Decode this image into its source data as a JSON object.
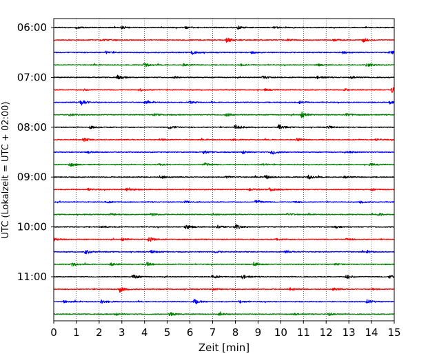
{
  "chart_data": {
    "type": "line",
    "title": "",
    "xlabel": "Zeit  [min]",
    "ylabel": "UTC (Lokalzeit = UTC + 02:00)",
    "xlim": [
      0,
      15
    ],
    "x_ticks": [
      "0",
      "1",
      "2",
      "3",
      "4",
      "5",
      "6",
      "7",
      "8",
      "9",
      "10",
      "11",
      "12",
      "13",
      "14",
      "15"
    ],
    "y_ticks": [
      "06:00",
      "07:00",
      "08:00",
      "09:00",
      "10:00",
      "11:00"
    ],
    "grid": "vertical dotted at each minute",
    "legend": "none",
    "trace_colors": [
      "#000000",
      "#ff0000",
      "#0000ff",
      "#008000"
    ],
    "rows_per_hour": 4,
    "row_minutes": 15,
    "series": [
      {
        "start": "06:00",
        "color": "#000000",
        "events": [
          [
            1.0,
            0.2
          ],
          [
            3.0,
            0.3
          ],
          [
            5.8,
            0.25
          ],
          [
            8.1,
            0.35
          ],
          [
            9.7,
            0.2
          ]
        ]
      },
      {
        "start": "06:15",
        "color": "#ff0000",
        "events": [
          [
            2.1,
            0.3
          ],
          [
            7.6,
            0.55
          ],
          [
            10.3,
            0.25
          ],
          [
            12.3,
            0.35
          ],
          [
            13.6,
            0.55
          ]
        ]
      },
      {
        "start": "06:30",
        "color": "#0000ff",
        "events": [
          [
            2.3,
            0.25
          ],
          [
            6.1,
            0.45
          ],
          [
            8.7,
            0.2
          ],
          [
            12.7,
            0.3
          ],
          [
            14.8,
            0.5
          ]
        ]
      },
      {
        "start": "06:45",
        "color": "#008000",
        "events": [
          [
            4.0,
            0.45
          ],
          [
            5.7,
            0.25
          ],
          [
            8.2,
            0.2
          ],
          [
            11.6,
            0.25
          ],
          [
            13.8,
            0.4
          ]
        ]
      },
      {
        "start": "07:00",
        "color": "#000000",
        "events": [
          [
            2.8,
            0.45
          ],
          [
            5.3,
            0.2
          ],
          [
            9.2,
            0.35
          ],
          [
            11.6,
            0.3
          ],
          [
            13.1,
            0.25
          ]
        ]
      },
      {
        "start": "07:15",
        "color": "#ff0000",
        "events": [
          [
            1.3,
            0.2
          ],
          [
            3.8,
            0.25
          ],
          [
            9.3,
            0.2
          ],
          [
            12.8,
            0.25
          ],
          [
            14.9,
            0.65
          ]
        ]
      },
      {
        "start": "07:30",
        "color": "#0000ff",
        "events": [
          [
            1.2,
            0.75
          ],
          [
            4.0,
            0.25
          ],
          [
            6.0,
            0.3
          ],
          [
            10.8,
            0.3
          ],
          [
            14.8,
            0.35
          ]
        ]
      },
      {
        "start": "07:45",
        "color": "#008000",
        "events": [
          [
            0.7,
            0.3
          ],
          [
            4.4,
            0.25
          ],
          [
            7.6,
            0.4
          ],
          [
            10.9,
            0.7
          ],
          [
            12.9,
            0.35
          ]
        ]
      },
      {
        "start": "08:00",
        "color": "#000000",
        "events": [
          [
            1.6,
            0.3
          ],
          [
            5.1,
            0.4
          ],
          [
            8.0,
            0.6
          ],
          [
            9.9,
            0.55
          ],
          [
            12.1,
            0.25
          ]
        ]
      },
      {
        "start": "08:15",
        "color": "#ff0000",
        "events": [
          [
            1.3,
            0.4
          ],
          [
            4.7,
            0.25
          ],
          [
            7.8,
            0.2
          ],
          [
            10.7,
            0.3
          ],
          [
            14.2,
            0.2
          ]
        ]
      },
      {
        "start": "08:30",
        "color": "#0000ff",
        "events": [
          [
            1.5,
            0.2
          ],
          [
            6.6,
            0.3
          ],
          [
            8.3,
            0.4
          ],
          [
            9.6,
            0.55
          ],
          [
            13.0,
            0.25
          ]
        ]
      },
      {
        "start": "08:45",
        "color": "#008000",
        "events": [
          [
            0.7,
            0.45
          ],
          [
            4.6,
            0.2
          ],
          [
            6.6,
            0.45
          ],
          [
            9.2,
            0.25
          ],
          [
            13.9,
            0.3
          ]
        ]
      },
      {
        "start": "09:00",
        "color": "#000000",
        "events": [
          [
            4.7,
            0.45
          ],
          [
            7.6,
            0.25
          ],
          [
            9.3,
            0.5
          ],
          [
            11.2,
            0.5
          ],
          [
            12.8,
            0.25
          ]
        ]
      },
      {
        "start": "09:15",
        "color": "#ff0000",
        "events": [
          [
            1.5,
            0.25
          ],
          [
            3.2,
            0.55
          ],
          [
            8.6,
            0.25
          ],
          [
            9.5,
            0.4
          ],
          [
            14.0,
            0.2
          ]
        ]
      },
      {
        "start": "09:30",
        "color": "#0000ff",
        "events": [
          [
            2.3,
            0.25
          ],
          [
            5.8,
            0.3
          ],
          [
            8.9,
            0.5
          ],
          [
            10.6,
            0.2
          ],
          [
            13.5,
            0.3
          ]
        ]
      },
      {
        "start": "09:45",
        "color": "#008000",
        "events": [
          [
            2.5,
            0.25
          ],
          [
            4.3,
            0.35
          ],
          [
            7.0,
            0.25
          ],
          [
            10.3,
            0.25
          ],
          [
            14.3,
            0.3
          ]
        ]
      },
      {
        "start": "10:00",
        "color": "#000000",
        "events": [
          [
            2.1,
            0.3
          ],
          [
            5.8,
            0.55
          ],
          [
            7.2,
            0.4
          ],
          [
            8.0,
            0.5
          ],
          [
            12.4,
            0.2
          ]
        ]
      },
      {
        "start": "10:15",
        "color": "#ff0000",
        "events": [
          [
            0.0,
            0.4
          ],
          [
            3.0,
            0.3
          ],
          [
            4.2,
            0.55
          ],
          [
            9.8,
            0.25
          ],
          [
            12.9,
            0.25
          ]
        ]
      },
      {
        "start": "10:30",
        "color": "#0000ff",
        "events": [
          [
            1.4,
            0.5
          ],
          [
            4.3,
            0.35
          ],
          [
            7.1,
            0.2
          ],
          [
            10.2,
            0.25
          ],
          [
            13.8,
            0.2
          ]
        ]
      },
      {
        "start": "10:45",
        "color": "#008000",
        "events": [
          [
            0.8,
            0.4
          ],
          [
            2.5,
            0.35
          ],
          [
            4.1,
            0.45
          ],
          [
            8.8,
            0.45
          ],
          [
            12.4,
            0.25
          ]
        ]
      },
      {
        "start": "11:00",
        "color": "#000000",
        "events": [
          [
            3.5,
            0.5
          ],
          [
            7.0,
            0.4
          ],
          [
            8.3,
            0.5
          ],
          [
            12.9,
            0.45
          ],
          [
            14.8,
            0.35
          ]
        ]
      },
      {
        "start": "11:15",
        "color": "#ff0000",
        "events": [
          [
            2.9,
            0.6
          ],
          [
            7.0,
            0.2
          ],
          [
            10.4,
            0.3
          ],
          [
            12.3,
            0.35
          ],
          [
            14.0,
            0.2
          ]
        ]
      },
      {
        "start": "11:30",
        "color": "#0000ff",
        "events": [
          [
            0.4,
            0.3
          ],
          [
            2.1,
            0.45
          ],
          [
            6.2,
            0.55
          ],
          [
            8.2,
            0.3
          ],
          [
            13.8,
            0.45
          ]
        ]
      },
      {
        "start": "11:45",
        "color": "#008000",
        "events": [
          [
            2.7,
            0.3
          ],
          [
            5.1,
            0.5
          ],
          [
            7.3,
            0.35
          ],
          [
            10.6,
            0.2
          ],
          [
            12.1,
            0.3
          ]
        ]
      }
    ]
  }
}
